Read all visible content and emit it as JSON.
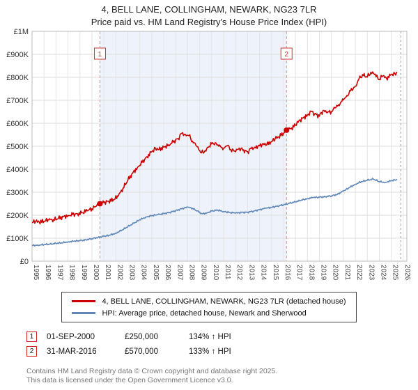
{
  "header": {
    "title": "4, BELL LANE, COLLINGHAM, NEWARK, NG23 7LR",
    "subtitle": "Price paid vs. HM Land Registry's House Price Index (HPI)"
  },
  "chart_data": {
    "type": "line",
    "title": "4, BELL LANE, COLLINGHAM, NEWARK, NG23 7LR",
    "subtitle": "Price paid vs. HM Land Registry's House Price Index (HPI)",
    "units": "GBP thousands",
    "x_range": [
      1995,
      2026.3
    ],
    "y_range_k": [
      0,
      1000
    ],
    "grid": true,
    "legend_position": "bottom",
    "y_ticks": [
      [
        0,
        "£0"
      ],
      [
        100,
        "£100K"
      ],
      [
        200,
        "£200K"
      ],
      [
        300,
        "£300K"
      ],
      [
        400,
        "£400K"
      ],
      [
        500,
        "£500K"
      ],
      [
        600,
        "£600K"
      ],
      [
        700,
        "£700K"
      ],
      [
        800,
        "£800K"
      ],
      [
        900,
        "£900K"
      ],
      [
        1000,
        "£1M"
      ]
    ],
    "x_ticks": [
      "1995",
      "1996",
      "1997",
      "1998",
      "1999",
      "2000",
      "2001",
      "2002",
      "2003",
      "2004",
      "2005",
      "2006",
      "2007",
      "2008",
      "2009",
      "2010",
      "2011",
      "2012",
      "2013",
      "2014",
      "2015",
      "2016",
      "2017",
      "2018",
      "2019",
      "2020",
      "2021",
      "2022",
      "2023",
      "2024",
      "2025",
      "2026"
    ],
    "shaded_region": {
      "from": 2000.67,
      "to": 2016.25,
      "color": "#eef2fa"
    },
    "end_line_x": 2025.8,
    "markers": [
      {
        "label": "1",
        "x": 2000.67,
        "y_k": 250,
        "date": "01-SEP-2000",
        "price": "£250,000",
        "vs_hpi": "134% ↑ HPI"
      },
      {
        "label": "2",
        "x": 2016.25,
        "y_k": 570,
        "date": "31-MAR-2016",
        "price": "£570,000",
        "vs_hpi": "133% ↑ HPI"
      }
    ],
    "series": [
      {
        "name": "4, BELL LANE, COLLINGHAM, NEWARK, NG23 7LR (detached house)",
        "color": "#cc0000",
        "points_k": [
          [
            1995.0,
            168
          ],
          [
            1995.3,
            173
          ],
          [
            1995.6,
            170
          ],
          [
            1996.0,
            174
          ],
          [
            1996.4,
            179
          ],
          [
            1996.8,
            181
          ],
          [
            1997.2,
            186
          ],
          [
            1997.6,
            193
          ],
          [
            1998.0,
            199
          ],
          [
            1998.4,
            203
          ],
          [
            1998.8,
            206
          ],
          [
            1999.2,
            211
          ],
          [
            1999.6,
            219
          ],
          [
            2000.0,
            228
          ],
          [
            2000.4,
            241
          ],
          [
            2000.67,
            250
          ],
          [
            2001.0,
            254
          ],
          [
            2001.4,
            261
          ],
          [
            2001.8,
            267
          ],
          [
            2002.2,
            283
          ],
          [
            2002.6,
            318
          ],
          [
            2003.0,
            352
          ],
          [
            2003.4,
            383
          ],
          [
            2003.8,
            408
          ],
          [
            2004.2,
            430
          ],
          [
            2004.6,
            455
          ],
          [
            2005.0,
            476
          ],
          [
            2005.3,
            492
          ],
          [
            2005.6,
            486
          ],
          [
            2006.0,
            496
          ],
          [
            2006.4,
            506
          ],
          [
            2006.8,
            518
          ],
          [
            2007.2,
            534
          ],
          [
            2007.5,
            556
          ],
          [
            2007.8,
            552
          ],
          [
            2008.1,
            546
          ],
          [
            2008.4,
            522
          ],
          [
            2008.7,
            502
          ],
          [
            2009.0,
            482
          ],
          [
            2009.3,
            470
          ],
          [
            2009.6,
            492
          ],
          [
            2010.0,
            510
          ],
          [
            2010.3,
            516
          ],
          [
            2010.6,
            500
          ],
          [
            2011.0,
            492
          ],
          [
            2011.3,
            502
          ],
          [
            2011.6,
            486
          ],
          [
            2012.0,
            476
          ],
          [
            2012.3,
            492
          ],
          [
            2012.6,
            482
          ],
          [
            2013.0,
            476
          ],
          [
            2013.3,
            490
          ],
          [
            2013.6,
            496
          ],
          [
            2014.0,
            502
          ],
          [
            2014.3,
            512
          ],
          [
            2014.6,
            506
          ],
          [
            2015.0,
            521
          ],
          [
            2015.3,
            532
          ],
          [
            2015.6,
            541
          ],
          [
            2016.0,
            556
          ],
          [
            2016.25,
            570
          ],
          [
            2016.6,
            576
          ],
          [
            2017.0,
            592
          ],
          [
            2017.3,
            612
          ],
          [
            2017.6,
            622
          ],
          [
            2018.0,
            636
          ],
          [
            2018.3,
            652
          ],
          [
            2018.6,
            641
          ],
          [
            2019.0,
            631
          ],
          [
            2019.3,
            656
          ],
          [
            2019.6,
            646
          ],
          [
            2020.0,
            651
          ],
          [
            2020.3,
            666
          ],
          [
            2020.6,
            681
          ],
          [
            2021.0,
            701
          ],
          [
            2021.3,
            721
          ],
          [
            2021.6,
            741
          ],
          [
            2022.0,
            762
          ],
          [
            2022.3,
            792
          ],
          [
            2022.6,
            812
          ],
          [
            2023.0,
            801
          ],
          [
            2023.3,
            822
          ],
          [
            2023.6,
            812
          ],
          [
            2024.0,
            791
          ],
          [
            2024.3,
            806
          ],
          [
            2024.6,
            796
          ],
          [
            2025.0,
            811
          ],
          [
            2025.3,
            816
          ],
          [
            2025.5,
            820
          ]
        ]
      },
      {
        "name": "HPI: Average price, detached house, Newark and Sherwood",
        "color": "#5e87b8",
        "points_k": [
          [
            1995,
            68
          ],
          [
            1995.5,
            70
          ],
          [
            1996,
            72
          ],
          [
            1996.5,
            74
          ],
          [
            1997,
            77
          ],
          [
            1997.5,
            80
          ],
          [
            1998,
            84
          ],
          [
            1998.5,
            87
          ],
          [
            1999,
            89
          ],
          [
            1999.5,
            93
          ],
          [
            2000,
            98
          ],
          [
            2000.5,
            103
          ],
          [
            2001,
            108
          ],
          [
            2001.5,
            113
          ],
          [
            2002,
            122
          ],
          [
            2002.5,
            135
          ],
          [
            2003,
            150
          ],
          [
            2003.5,
            165
          ],
          [
            2004,
            180
          ],
          [
            2004.5,
            192
          ],
          [
            2005,
            198
          ],
          [
            2005.5,
            202
          ],
          [
            2006,
            207
          ],
          [
            2006.5,
            212
          ],
          [
            2007,
            220
          ],
          [
            2007.5,
            228
          ],
          [
            2008,
            235
          ],
          [
            2008.4,
            230
          ],
          [
            2008.8,
            218
          ],
          [
            2009.2,
            206
          ],
          [
            2009.6,
            210
          ],
          [
            2010,
            218
          ],
          [
            2010.5,
            222
          ],
          [
            2011,
            216
          ],
          [
            2011.5,
            212
          ],
          [
            2012,
            209
          ],
          [
            2012.5,
            212
          ],
          [
            2013,
            213
          ],
          [
            2013.5,
            218
          ],
          [
            2014,
            224
          ],
          [
            2014.5,
            230
          ],
          [
            2015,
            234
          ],
          [
            2015.5,
            240
          ],
          [
            2016,
            245
          ],
          [
            2016.5,
            252
          ],
          [
            2017,
            258
          ],
          [
            2017.5,
            266
          ],
          [
            2018,
            272
          ],
          [
            2018.5,
            277
          ],
          [
            2019,
            278
          ],
          [
            2019.5,
            281
          ],
          [
            2020,
            284
          ],
          [
            2020.5,
            291
          ],
          [
            2021,
            305
          ],
          [
            2021.5,
            320
          ],
          [
            2022,
            335
          ],
          [
            2022.5,
            346
          ],
          [
            2023,
            352
          ],
          [
            2023.5,
            357
          ],
          [
            2024,
            346
          ],
          [
            2024.5,
            343
          ],
          [
            2025,
            350
          ],
          [
            2025.5,
            355
          ]
        ]
      }
    ]
  },
  "legend": {
    "entries": [
      {
        "label": "4, BELL LANE, COLLINGHAM, NEWARK, NG23 7LR (detached house)",
        "color": "#cc0000"
      },
      {
        "label": "HPI: Average price, detached house, Newark and Sherwood",
        "color": "#5e87b8"
      }
    ]
  },
  "annotations": [
    {
      "num": "1",
      "date": "01-SEP-2000",
      "price": "£250,000",
      "hpi": "134% ↑ HPI"
    },
    {
      "num": "2",
      "date": "31-MAR-2016",
      "price": "£570,000",
      "hpi": "133% ↑ HPI"
    }
  ],
  "footer": {
    "line1": "Contains HM Land Registry data © Crown copyright and database right 2025.",
    "line2": "This data is licensed under the Open Government Licence v3.0."
  }
}
